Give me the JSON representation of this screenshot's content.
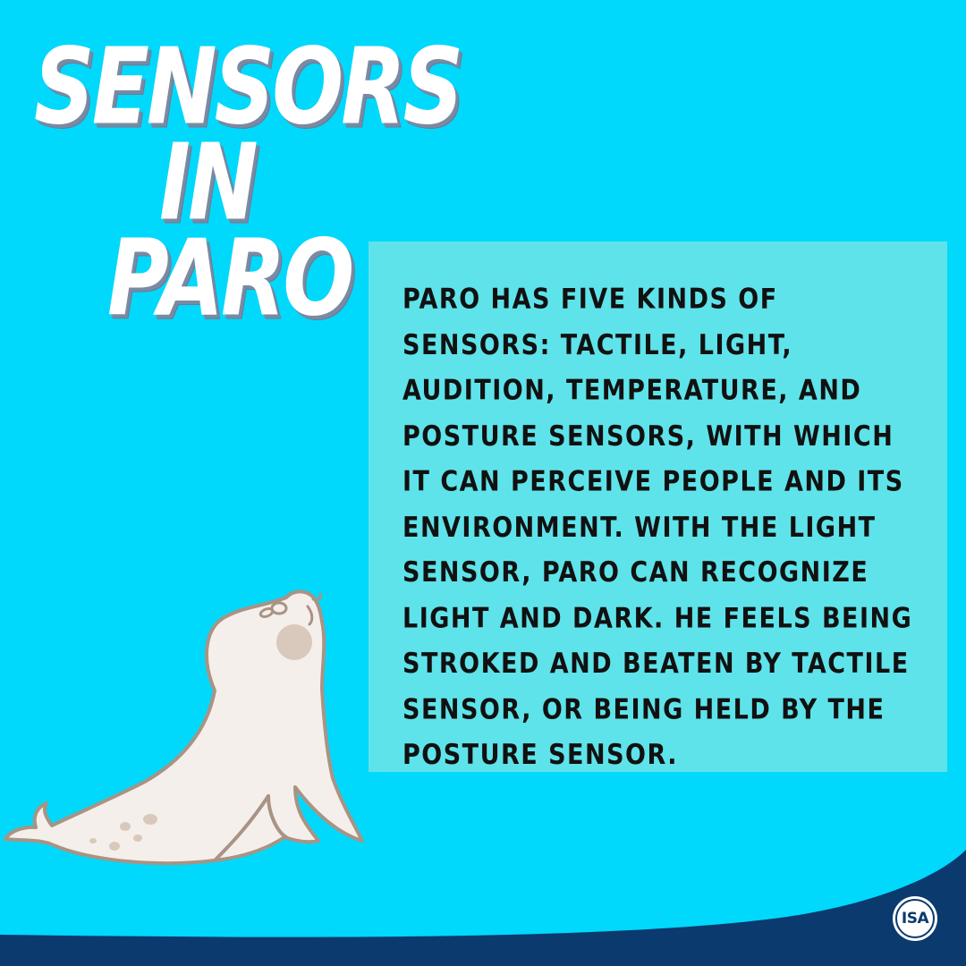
{
  "title": {
    "line1": "SENSORS",
    "line2": "IN",
    "line3": "PARO"
  },
  "body": "PARO HAS FIVE KINDS OF SENSORS: TACTILE, LIGHT, AUDITION, TEMPERATURE, AND POSTURE SENSORS, WITH WHICH IT CAN PERCEIVE PEOPLE AND ITS ENVIRONMENT. WITH THE LIGHT SENSOR, PARO CAN RECOGNIZE LIGHT AND DARK. HE FEELS BEING STROKED AND BEATEN BY TACTILE SENSOR, OR BEING HELD BY THE POSTURE SENSOR.",
  "logo": {
    "text": "ISA",
    "icon": "isa-logo-icon"
  },
  "illustration": {
    "icon": "seal-icon"
  },
  "colors": {
    "background": "#00d8fc",
    "text_box": "#5fe3ea",
    "footer": "#0b3a6e",
    "title": "#ffffff",
    "body_text": "#111111"
  }
}
